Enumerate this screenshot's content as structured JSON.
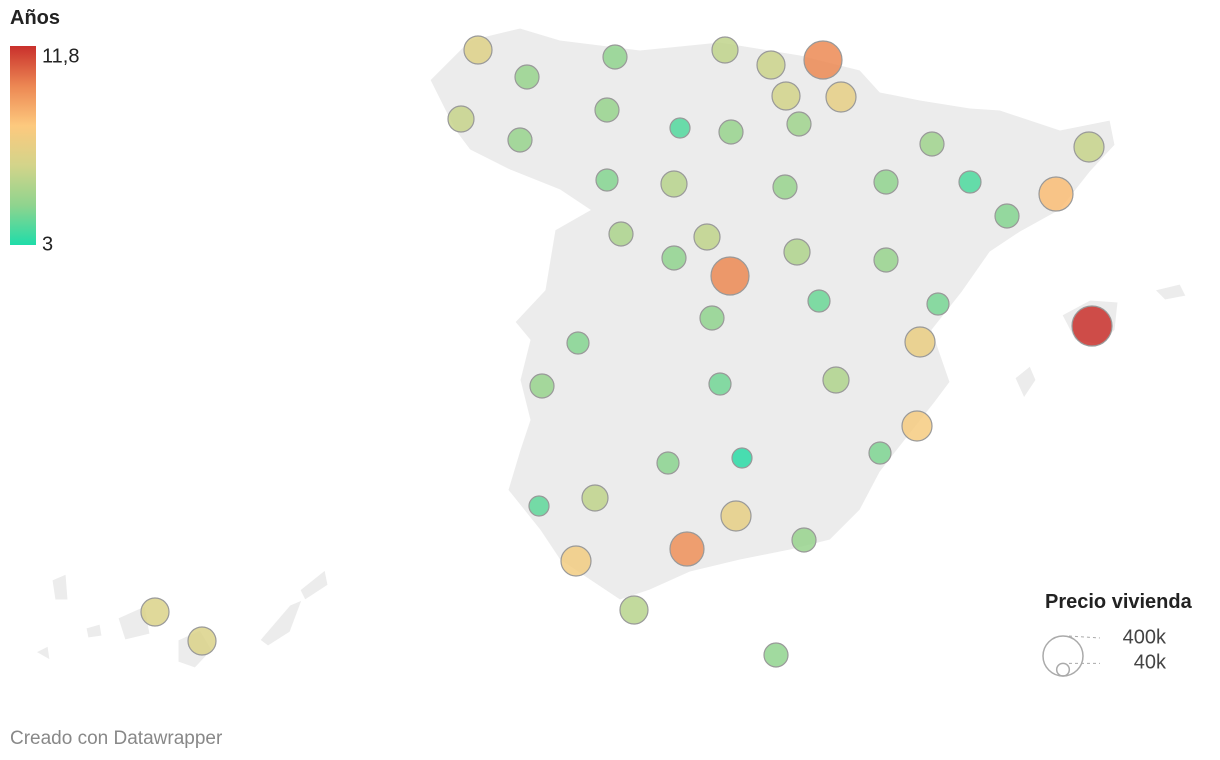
{
  "chart_data": {
    "type": "bubble_map",
    "color_title": "Años",
    "color_scale": [
      {
        "value": 3,
        "label": "3"
      },
      {
        "value": 11.8,
        "label": "11,8"
      }
    ],
    "colors": [
      "#1fdca9",
      "#8fd48e",
      "#d3d48a",
      "#fdc97e",
      "#ec8753",
      "#c9302c"
    ],
    "size_title": "Precio vivienda",
    "size_scale": [
      {
        "value": 400000,
        "label": "400k"
      },
      {
        "value": 40000,
        "label": "40k"
      }
    ],
    "years": [
      7,
      5,
      4.8,
      6,
      6.3,
      10,
      6.5,
      7.3,
      6.2,
      5,
      3.8,
      5,
      5.2,
      5,
      5.2,
      6.2,
      4.6,
      5.8,
      5,
      4.8,
      3.7,
      8.6,
      4.6,
      5.5,
      6,
      5.6,
      4.8,
      5,
      10,
      4.2,
      4.4,
      11.8,
      4.8,
      4.6,
      7.5,
      5,
      4.3,
      5.6,
      8,
      4.5,
      3.2,
      4.7,
      6,
      4,
      7.3,
      5,
      9.8,
      7.8,
      5.8,
      4.8,
      6.8,
      6.8
    ],
    "price": [
      196000,
      144000,
      144000,
      169000,
      196000,
      361000,
      196000,
      225000,
      169000,
      144000,
      100000,
      144000,
      144000,
      144000,
      144000,
      225000,
      121000,
      169000,
      144000,
      144000,
      121000,
      289000,
      144000,
      144000,
      169000,
      169000,
      144000,
      144000,
      361000,
      121000,
      121000,
      400000,
      144000,
      121000,
      225000,
      144000,
      121000,
      169000,
      225000,
      121000,
      100000,
      121000,
      169000,
      100000,
      225000,
      144000,
      289000,
      225000,
      196000,
      144000,
      196000,
      196000
    ],
    "credit": "Creado con Datawrapper"
  }
}
